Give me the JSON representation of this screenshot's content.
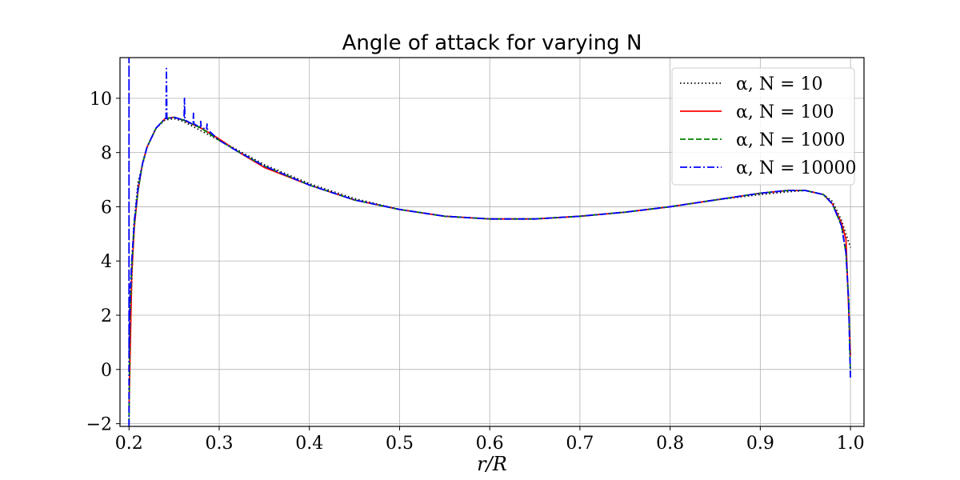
{
  "chart_data": {
    "type": "line",
    "title": "Angle of attack for varying N",
    "xlabel": "r/R",
    "ylabel": "",
    "xlim": [
      0.19,
      1.015
    ],
    "ylim": [
      -2.1,
      11.5
    ],
    "xticks": [
      0.2,
      0.3,
      0.4,
      0.5,
      0.6,
      0.7,
      0.8,
      0.9,
      1.0
    ],
    "xtick_labels": [
      "0.2",
      "0.3",
      "0.4",
      "0.5",
      "0.6",
      "0.7",
      "0.8",
      "0.9",
      "1.0"
    ],
    "yticks": [
      -2,
      0,
      2,
      4,
      6,
      8,
      10
    ],
    "ytick_labels": [
      "−2",
      "0",
      "2",
      "4",
      "6",
      "8",
      "10"
    ],
    "grid": true,
    "legend_position": "top-right",
    "series": [
      {
        "name": "α, N = 10",
        "color": "#000000",
        "style": "dotted",
        "x": [
          0.2,
          0.205,
          0.21,
          0.22,
          0.23,
          0.24,
          0.25,
          0.26,
          0.28,
          0.3,
          0.32,
          0.35,
          0.4,
          0.45,
          0.5,
          0.55,
          0.6,
          0.65,
          0.7,
          0.75,
          0.8,
          0.85,
          0.9,
          0.93,
          0.95,
          0.97,
          0.98,
          0.99,
          1.0
        ],
        "y": [
          0.0,
          5.2,
          6.9,
          8.2,
          8.9,
          9.2,
          9.25,
          9.15,
          8.8,
          8.45,
          8.1,
          7.55,
          6.85,
          6.3,
          5.9,
          5.65,
          5.55,
          5.55,
          5.65,
          5.8,
          6.0,
          6.25,
          6.45,
          6.55,
          6.6,
          6.45,
          6.2,
          5.5,
          4.5
        ]
      },
      {
        "name": "α, N = 100",
        "color": "#ff0000",
        "style": "solid",
        "x": [
          0.2,
          0.203,
          0.206,
          0.21,
          0.215,
          0.22,
          0.23,
          0.24,
          0.25,
          0.26,
          0.28,
          0.3,
          0.32,
          0.35,
          0.4,
          0.45,
          0.5,
          0.55,
          0.6,
          0.65,
          0.7,
          0.75,
          0.8,
          0.85,
          0.9,
          0.93,
          0.95,
          0.97,
          0.98,
          0.99,
          0.995,
          1.0
        ],
        "y": [
          -1.5,
          3.5,
          5.3,
          6.6,
          7.6,
          8.2,
          8.9,
          9.25,
          9.3,
          9.2,
          8.9,
          8.5,
          8.05,
          7.45,
          6.8,
          6.25,
          5.9,
          5.65,
          5.55,
          5.55,
          5.65,
          5.8,
          6.0,
          6.25,
          6.5,
          6.6,
          6.6,
          6.45,
          6.1,
          5.4,
          4.8,
          0.5
        ]
      },
      {
        "name": "α, N = 1000",
        "color": "#008000",
        "style": "dashed",
        "x": [
          0.2,
          0.201,
          0.203,
          0.206,
          0.21,
          0.215,
          0.22,
          0.23,
          0.24,
          0.25,
          0.26,
          0.28,
          0.3,
          0.32,
          0.35,
          0.4,
          0.45,
          0.5,
          0.55,
          0.6,
          0.65,
          0.7,
          0.75,
          0.8,
          0.85,
          0.9,
          0.93,
          0.95,
          0.97,
          0.98,
          0.99,
          0.995,
          0.998,
          1.0
        ],
        "y": [
          -2.0,
          2.0,
          3.8,
          5.4,
          6.6,
          7.6,
          8.2,
          8.9,
          9.25,
          9.3,
          9.2,
          8.9,
          8.45,
          8.05,
          7.5,
          6.8,
          6.25,
          5.9,
          5.65,
          5.55,
          5.55,
          5.65,
          5.8,
          6.0,
          6.25,
          6.5,
          6.6,
          6.6,
          6.45,
          6.1,
          5.3,
          4.3,
          2.5,
          -0.2
        ]
      },
      {
        "name": "α, N = 10000",
        "color": "#0000ff",
        "style": "dashdot",
        "x": [
          0.2,
          0.2,
          0.2,
          0.2005,
          0.201,
          0.203,
          0.206,
          0.21,
          0.215,
          0.22,
          0.23,
          0.24,
          0.241,
          0.2415,
          0.242,
          0.25,
          0.26,
          0.261,
          0.2615,
          0.262,
          0.27,
          0.271,
          0.2715,
          0.272,
          0.278,
          0.279,
          0.2795,
          0.28,
          0.285,
          0.286,
          0.2865,
          0.287,
          0.3,
          0.32,
          0.35,
          0.4,
          0.45,
          0.5,
          0.55,
          0.6,
          0.65,
          0.7,
          0.75,
          0.8,
          0.85,
          0.9,
          0.93,
          0.95,
          0.97,
          0.98,
          0.99,
          0.995,
          0.998,
          0.999,
          1.0
        ],
        "y": [
          -2.1,
          11.5,
          0.5,
          1.5,
          2.5,
          4.0,
          5.5,
          6.7,
          7.6,
          8.2,
          8.9,
          9.25,
          9.25,
          11.1,
          9.25,
          9.3,
          9.2,
          9.2,
          10.0,
          9.2,
          9.05,
          9.05,
          9.45,
          9.05,
          8.95,
          8.95,
          9.15,
          8.95,
          8.85,
          8.85,
          9.05,
          8.85,
          8.45,
          8.05,
          7.5,
          6.8,
          6.25,
          5.9,
          5.65,
          5.55,
          5.55,
          5.65,
          5.8,
          6.0,
          6.25,
          6.5,
          6.6,
          6.6,
          6.45,
          6.1,
          5.3,
          4.3,
          2.5,
          1.0,
          -0.3
        ]
      }
    ]
  }
}
